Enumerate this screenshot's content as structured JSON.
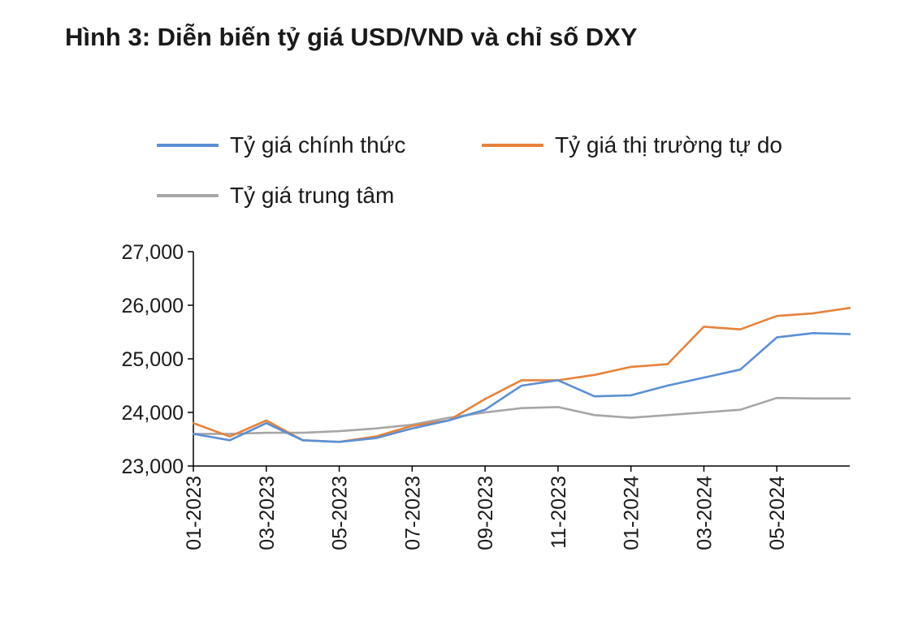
{
  "title": "Hình 3: Diễn biến tỷ giá USD/VND và chỉ số DXY",
  "colors": {
    "official": "#5b8fd4",
    "free_market": "#e6823a",
    "central": "#a6a6a6",
    "axis": "#000000"
  },
  "chart_data": {
    "type": "line",
    "title": "Hình 3: Diễn biến tỷ giá USD/VND và chỉ số DXY",
    "xlabel": "",
    "ylabel": "",
    "x_unit": "month",
    "x_start": "01-2023",
    "x_end": "07-2024",
    "ylim": [
      23000,
      27000
    ],
    "yticks": [
      23000,
      24000,
      25000,
      26000,
      27000
    ],
    "ytick_labels": [
      "23,000",
      "24,000",
      "25,000",
      "26,000",
      "27,000"
    ],
    "xticks": [
      "01-2023",
      "03-2023",
      "05-2023",
      "07-2023",
      "09-2023",
      "11-2023",
      "01-2024",
      "03-2024",
      "05-2024"
    ],
    "legend_position": "top",
    "grid": false,
    "series": [
      {
        "name": "Tỷ giá chính thức",
        "color_key": "official",
        "x": [
          "01-2023",
          "02-2023",
          "03-2023",
          "04-2023",
          "05-2023",
          "06-2023",
          "07-2023",
          "08-2023",
          "09-2023",
          "10-2023",
          "11-2023",
          "12-2023",
          "01-2024",
          "02-2024",
          "03-2024",
          "04-2024",
          "05-2024",
          "06-2024",
          "07-2024"
        ],
        "values": [
          23600,
          23480,
          23800,
          23480,
          23450,
          23520,
          23700,
          23850,
          24050,
          24500,
          24600,
          24300,
          24320,
          24500,
          24650,
          24800,
          25400,
          25480,
          25460
        ]
      },
      {
        "name": "Tỷ giá thị trường tự do",
        "color_key": "free_market",
        "x": [
          "01-2023",
          "02-2023",
          "03-2023",
          "04-2023",
          "05-2023",
          "06-2023",
          "07-2023",
          "08-2023",
          "09-2023",
          "10-2023",
          "11-2023",
          "12-2023",
          "01-2024",
          "02-2024",
          "03-2024",
          "04-2024",
          "05-2024",
          "06-2024",
          "07-2024"
        ],
        "values": [
          23800,
          23550,
          23850,
          23480,
          23450,
          23550,
          23750,
          23850,
          24250,
          24600,
          24600,
          24700,
          24850,
          24900,
          25600,
          25550,
          25800,
          25850,
          25950
        ]
      },
      {
        "name": "Tỷ giá trung tâm",
        "color_key": "central",
        "x": [
          "01-2023",
          "02-2023",
          "03-2023",
          "04-2023",
          "05-2023",
          "06-2023",
          "07-2023",
          "08-2023",
          "09-2023",
          "10-2023",
          "11-2023",
          "12-2023",
          "01-2024",
          "02-2024",
          "03-2024",
          "04-2024",
          "05-2024",
          "06-2024",
          "07-2024"
        ],
        "values": [
          23600,
          23600,
          23620,
          23620,
          23650,
          23700,
          23770,
          23900,
          24000,
          24080,
          24100,
          23950,
          23900,
          23950,
          24000,
          24050,
          24270,
          24260,
          24260
        ]
      }
    ]
  }
}
